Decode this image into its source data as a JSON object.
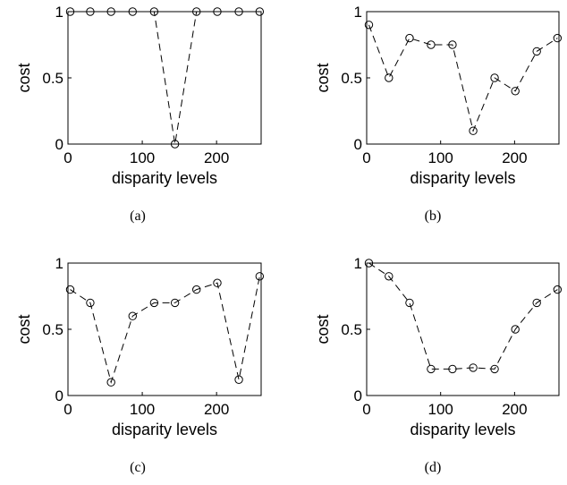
{
  "chart_data": [
    {
      "type": "line",
      "caption": "(a)",
      "xlabel": "disparity levels",
      "ylabel": "cost",
      "xlim": [
        0,
        260
      ],
      "ylim": [
        0,
        1
      ],
      "xticks": [
        "0",
        "100",
        "200"
      ],
      "yticks": [
        "0",
        "0.5",
        "1"
      ],
      "grid": false,
      "series": [
        {
          "x": [
            3,
            30,
            58,
            87,
            116,
            144,
            173,
            201,
            230,
            258
          ],
          "y": [
            1,
            1,
            1,
            1,
            1,
            0,
            1,
            1,
            1,
            1
          ],
          "line_style": "dashed",
          "marker": "circle"
        }
      ]
    },
    {
      "type": "line",
      "caption": "(b)",
      "xlabel": "disparity levels",
      "ylabel": "cost",
      "xlim": [
        0,
        260
      ],
      "ylim": [
        0,
        1
      ],
      "xticks": [
        "0",
        "100",
        "200"
      ],
      "yticks": [
        "0",
        "0.5",
        "1"
      ],
      "grid": false,
      "series": [
        {
          "x": [
            3,
            30,
            58,
            87,
            116,
            144,
            173,
            201,
            230,
            258
          ],
          "y": [
            0.9,
            0.5,
            0.8,
            0.75,
            0.75,
            0.1,
            0.5,
            0.4,
            0.7,
            0.8
          ],
          "line_style": "dashed",
          "marker": "circle"
        }
      ]
    },
    {
      "type": "line",
      "caption": "(c)",
      "xlabel": "disparity levels",
      "ylabel": "cost",
      "xlim": [
        0,
        260
      ],
      "ylim": [
        0,
        1
      ],
      "xticks": [
        "0",
        "100",
        "200"
      ],
      "yticks": [
        "0",
        "0.5",
        "1"
      ],
      "grid": false,
      "series": [
        {
          "x": [
            3,
            30,
            58,
            87,
            116,
            144,
            173,
            201,
            230,
            258
          ],
          "y": [
            0.8,
            0.7,
            0.1,
            0.6,
            0.7,
            0.7,
            0.8,
            0.85,
            0.12,
            0.9
          ],
          "line_style": "dashed",
          "marker": "circle"
        }
      ]
    },
    {
      "type": "line",
      "caption": "(d)",
      "xlabel": "disparity levels",
      "ylabel": "cost",
      "xlim": [
        0,
        260
      ],
      "ylim": [
        0,
        1
      ],
      "xticks": [
        "0",
        "100",
        "200"
      ],
      "yticks": [
        "0",
        "0.5",
        "1"
      ],
      "grid": false,
      "series": [
        {
          "x": [
            3,
            30,
            58,
            87,
            116,
            144,
            173,
            201,
            230,
            258
          ],
          "y": [
            1,
            0.9,
            0.7,
            0.2,
            0.2,
            0.21,
            0.2,
            0.5,
            0.7,
            0.8
          ],
          "line_style": "dashed",
          "marker": "circle"
        }
      ]
    }
  ]
}
